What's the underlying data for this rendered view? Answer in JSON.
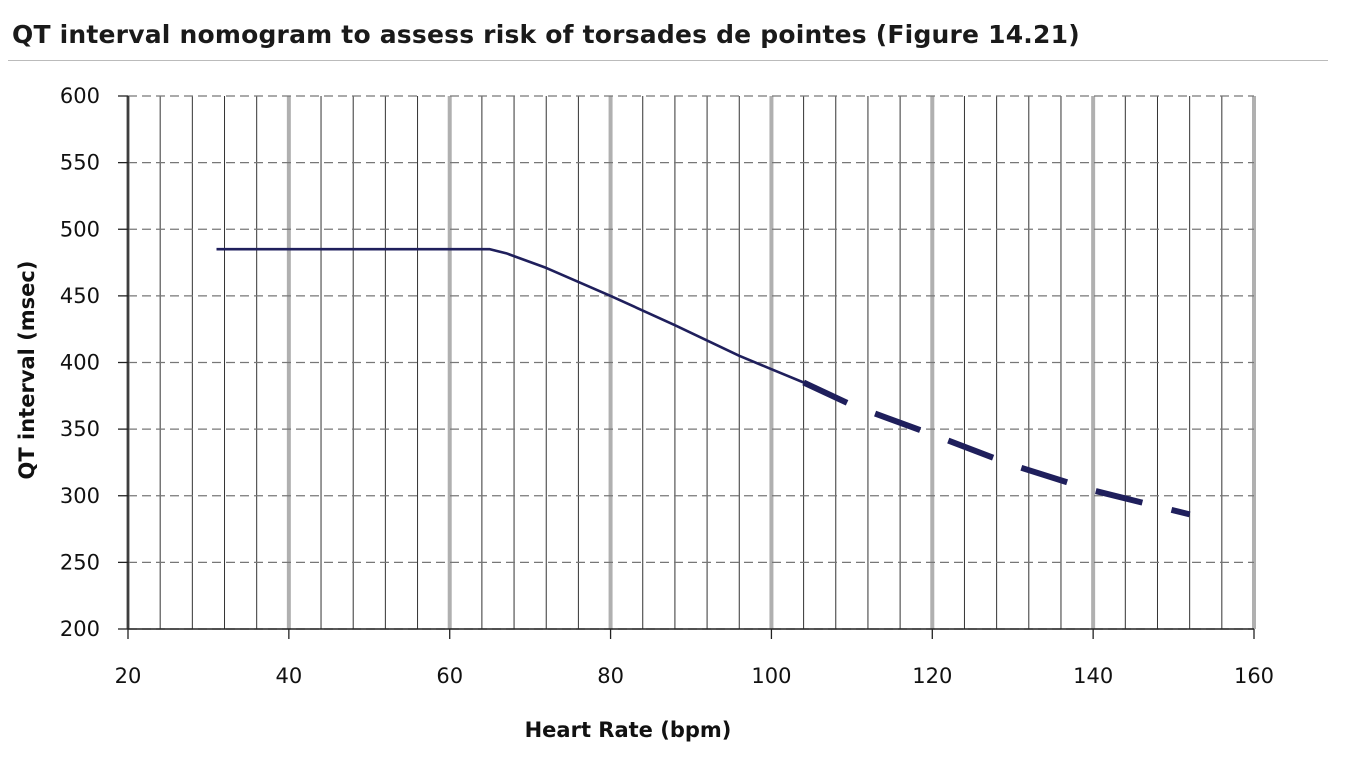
{
  "page": {
    "title": "QT interval nomogram to assess risk of torsades de pointes (Figure 14.21)"
  },
  "chart_data": {
    "type": "line",
    "title": "QT interval nomogram to assess risk of torsades de pointes (Figure 14.21)",
    "xlabel": "Heart Rate (bpm)",
    "ylabel": "QT interval (msec)",
    "xlim": [
      20,
      160
    ],
    "ylim": [
      200,
      600
    ],
    "xticks": [
      20,
      40,
      60,
      80,
      100,
      120,
      140,
      160
    ],
    "yticks": [
      200,
      250,
      300,
      350,
      400,
      450,
      500,
      550,
      600
    ],
    "x_minor_grid_step": 4,
    "grid": true,
    "legend": "none",
    "colors": {
      "line": "#1f1f5c",
      "major_grid": "#b0b0b0",
      "minor_grid": "#333333",
      "h_grid": "#777777",
      "axis": "#222222"
    },
    "series": [
      {
        "name": "solid segment",
        "style": "solid",
        "points": [
          [
            31,
            485
          ],
          [
            65,
            485
          ],
          [
            67,
            482
          ],
          [
            72,
            471
          ],
          [
            80,
            450
          ],
          [
            88,
            428
          ],
          [
            96,
            405
          ],
          [
            100,
            395
          ],
          [
            104,
            385
          ]
        ]
      },
      {
        "name": "dashed segment",
        "style": "dashed",
        "points": [
          [
            104,
            385
          ],
          [
            110,
            368
          ],
          [
            120,
            346
          ],
          [
            130,
            323
          ],
          [
            140,
            304
          ],
          [
            152,
            286
          ]
        ]
      }
    ]
  }
}
